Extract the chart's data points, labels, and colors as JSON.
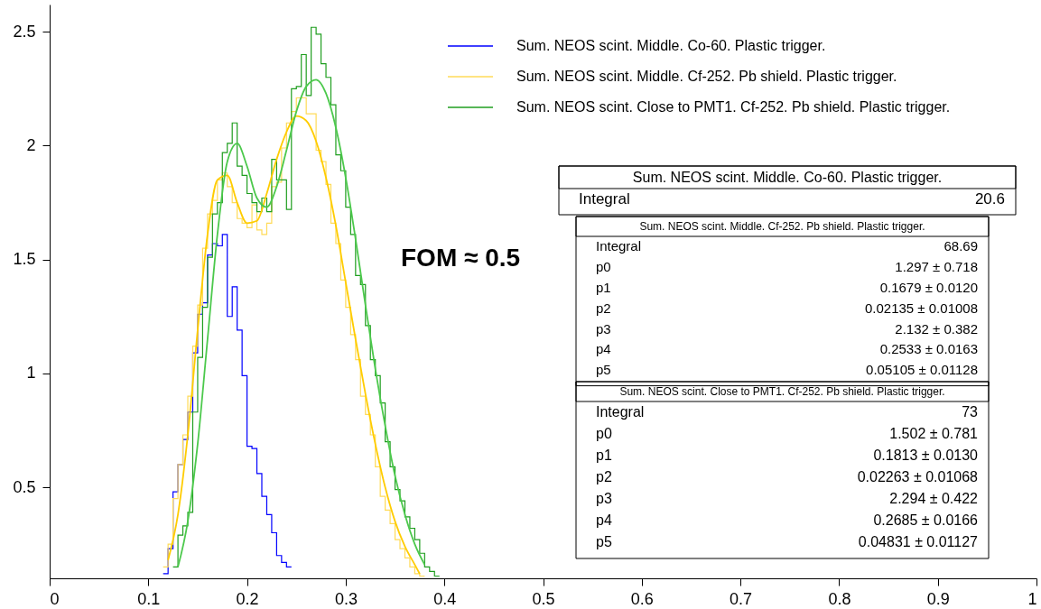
{
  "chart_data": {
    "type": "histogram",
    "xlim": [
      0,
      1
    ],
    "xticks": [
      0,
      0.1,
      0.2,
      0.3,
      0.4,
      0.5,
      0.6,
      0.7,
      0.8,
      0.9,
      1
    ],
    "ylim": [
      0.1,
      2.62
    ],
    "yticks": [
      0.5,
      1,
      1.5,
      2,
      2.5
    ],
    "grid": false,
    "legend": "top right",
    "series": [
      {
        "name": "Sum. NEOS scint. Middle. Co-60. Plastic trigger.",
        "color": "#0000ff",
        "bins": [
          0.115,
          0.12,
          0.125,
          0.13,
          0.135,
          0.14,
          0.145,
          0.15,
          0.155,
          0.16,
          0.165,
          0.17,
          0.175,
          0.18,
          0.185,
          0.19,
          0.195,
          0.2,
          0.205,
          0.21,
          0.215,
          0.22,
          0.225,
          0.23,
          0.235,
          0.24,
          0.245
        ],
        "values": [
          0.12,
          0.23,
          0.48,
          0.6,
          0.71,
          0.83,
          1.09,
          1.26,
          1.31,
          1.52,
          1.57,
          1.56,
          1.61,
          1.25,
          1.38,
          1.19,
          0.99,
          0.68,
          0.67,
          0.56,
          0.46,
          0.38,
          0.3,
          0.2,
          0.17,
          0.15
        ]
      },
      {
        "name": "Sum. NEOS scint. Middle. Cf-252. Pb shield. Plastic trigger.",
        "color": "#ffdb58",
        "bins": [
          0.115,
          0.12,
          0.125,
          0.13,
          0.135,
          0.14,
          0.145,
          0.15,
          0.155,
          0.16,
          0.165,
          0.17,
          0.175,
          0.18,
          0.185,
          0.19,
          0.195,
          0.2,
          0.205,
          0.21,
          0.215,
          0.22,
          0.225,
          0.23,
          0.235,
          0.24,
          0.245,
          0.25,
          0.255,
          0.26,
          0.265,
          0.27,
          0.275,
          0.28,
          0.285,
          0.29,
          0.295,
          0.3,
          0.305,
          0.31,
          0.315,
          0.32,
          0.325,
          0.33,
          0.335,
          0.34,
          0.345,
          0.35,
          0.355,
          0.36,
          0.365,
          0.37,
          0.375,
          0.38
        ],
        "values": [
          0.15,
          0.25,
          0.45,
          0.6,
          0.73,
          0.9,
          1.12,
          1.3,
          1.55,
          1.7,
          1.76,
          1.85,
          1.88,
          1.82,
          1.75,
          1.68,
          1.66,
          1.64,
          1.74,
          1.63,
          1.61,
          1.66,
          1.82,
          1.84,
          1.99,
          2.1,
          2.15,
          2.21,
          2.21,
          2.14,
          2.14,
          1.98,
          1.93,
          1.83,
          1.66,
          1.57,
          1.41,
          1.29,
          1.17,
          1.06,
          0.9,
          0.82,
          0.73,
          0.59,
          0.46,
          0.4,
          0.34,
          0.27,
          0.23,
          0.19,
          0.15,
          0.12,
          0.11
        ]
      },
      {
        "name": "Sum. NEOS scint. Close to PMT1. Cf-252. Pb shield. Plastic trigger.",
        "color": "#1f9e1f",
        "bins": [
          0.125,
          0.13,
          0.135,
          0.14,
          0.145,
          0.15,
          0.155,
          0.16,
          0.165,
          0.17,
          0.175,
          0.18,
          0.185,
          0.19,
          0.195,
          0.2,
          0.205,
          0.21,
          0.215,
          0.22,
          0.225,
          0.23,
          0.235,
          0.24,
          0.245,
          0.25,
          0.255,
          0.26,
          0.265,
          0.27,
          0.275,
          0.28,
          0.285,
          0.29,
          0.295,
          0.3,
          0.305,
          0.31,
          0.315,
          0.32,
          0.325,
          0.33,
          0.335,
          0.34,
          0.345,
          0.35,
          0.355,
          0.36,
          0.365,
          0.37,
          0.375,
          0.38,
          0.385,
          0.39,
          0.395
        ],
        "values": [
          0.15,
          0.29,
          0.33,
          0.39,
          0.83,
          1.07,
          1.29,
          1.51,
          1.7,
          1.75,
          1.97,
          2.01,
          2.1,
          1.91,
          1.87,
          1.79,
          1.75,
          1.71,
          1.77,
          1.71,
          1.94,
          1.85,
          1.85,
          1.72,
          2.25,
          2.26,
          2.4,
          2.22,
          2.52,
          2.49,
          2.36,
          2.3,
          2.18,
          1.96,
          1.89,
          1.73,
          1.61,
          1.43,
          1.39,
          1.21,
          1.06,
          0.99,
          0.87,
          0.7,
          0.59,
          0.49,
          0.44,
          0.37,
          0.32,
          0.27,
          0.21,
          0.15,
          0.13,
          0.11
        ]
      },
      {
        "type": "line",
        "color": "#ffcc00",
        "x": [
          0.12,
          0.13,
          0.14,
          0.15,
          0.16,
          0.17,
          0.18,
          0.19,
          0.2,
          0.21,
          0.22,
          0.23,
          0.24,
          0.25,
          0.26,
          0.27,
          0.28,
          0.29,
          0.3,
          0.31,
          0.32,
          0.33,
          0.34,
          0.35,
          0.36,
          0.37,
          0.375
        ],
        "values": [
          0.18,
          0.38,
          0.73,
          1.19,
          1.61,
          1.85,
          1.87,
          1.75,
          1.66,
          1.67,
          1.79,
          1.94,
          2.06,
          2.13,
          2.11,
          2.02,
          1.86,
          1.65,
          1.4,
          1.15,
          0.91,
          0.69,
          0.5,
          0.35,
          0.24,
          0.16,
          0.12
        ]
      },
      {
        "type": "line",
        "color": "#4cc94c",
        "x": [
          0.13,
          0.14,
          0.15,
          0.16,
          0.17,
          0.18,
          0.19,
          0.2,
          0.21,
          0.22,
          0.23,
          0.24,
          0.25,
          0.26,
          0.27,
          0.28,
          0.29,
          0.3,
          0.31,
          0.32,
          0.33,
          0.34,
          0.35,
          0.36,
          0.37,
          0.38
        ],
        "values": [
          0.15,
          0.35,
          0.69,
          1.15,
          1.61,
          1.93,
          2.01,
          1.91,
          1.77,
          1.73,
          1.82,
          1.98,
          2.15,
          2.26,
          2.29,
          2.23,
          2.08,
          1.86,
          1.59,
          1.3,
          1.02,
          0.77,
          0.55,
          0.38,
          0.25,
          0.16
        ]
      }
    ],
    "annotations": [
      "FOM ≈ 0.5",
      "Sum. NEOS scint. Middle. Co-60. Plastic trigger.",
      "Integral 20.6",
      "Sum. NEOS scint. Middle. Cf-252. Pb shield. Plastic trigger.",
      "Integral 68.69",
      "p0 1.297 ± 0.718",
      "p1 0.1679 ± 0.0120",
      "p2 0.02135 ± 0.01008",
      "p3 2.132 ± 0.382",
      "p4 0.2533 ± 0.0163",
      "p5 0.05105 ± 0.01128",
      "Sum. NEOS scint. Close to PMT1. Cf-252. Pb shield. Plastic trigger.",
      "Integral 73",
      "p0 1.502 ± 0.781",
      "p1 0.1813 ± 0.0130",
      "p2 0.02263 ± 0.01068",
      "p3 2.294 ± 0.422",
      "p4 0.2685 ± 0.0166",
      "p5 0.04831 ± 0.01127"
    ]
  }
}
